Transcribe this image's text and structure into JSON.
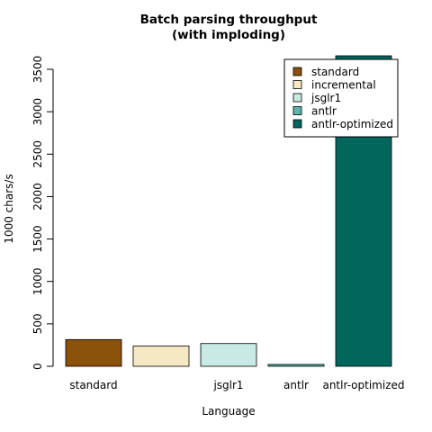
{
  "chart_data": {
    "type": "bar",
    "title": "Batch parsing throughput",
    "subtitle": "(with imploding)",
    "xlabel": "Language",
    "ylabel": "1000 chars/s",
    "categories": [
      "standard",
      "incremental",
      "jsglr1",
      "antlr",
      "antlr-optimized"
    ],
    "category_labels_shown": [
      "standard",
      "",
      "jsglr1",
      "antlr",
      "antlr-optimized"
    ],
    "values": [
      315,
      240,
      268,
      22,
      3660
    ],
    "colors": [
      "#8C510A",
      "#F6E8C3",
      "#C7EAE5",
      "#5AB4AC",
      "#01665E"
    ],
    "yticks": [
      0,
      500,
      1000,
      1500,
      2000,
      2500,
      3000,
      3500
    ],
    "ylim": [
      0,
      3500
    ],
    "grid": false,
    "legend": {
      "placement": "top-right",
      "entries": [
        "standard",
        "incremental",
        "jsglr1",
        "antlr",
        "antlr-optimized"
      ]
    }
  }
}
